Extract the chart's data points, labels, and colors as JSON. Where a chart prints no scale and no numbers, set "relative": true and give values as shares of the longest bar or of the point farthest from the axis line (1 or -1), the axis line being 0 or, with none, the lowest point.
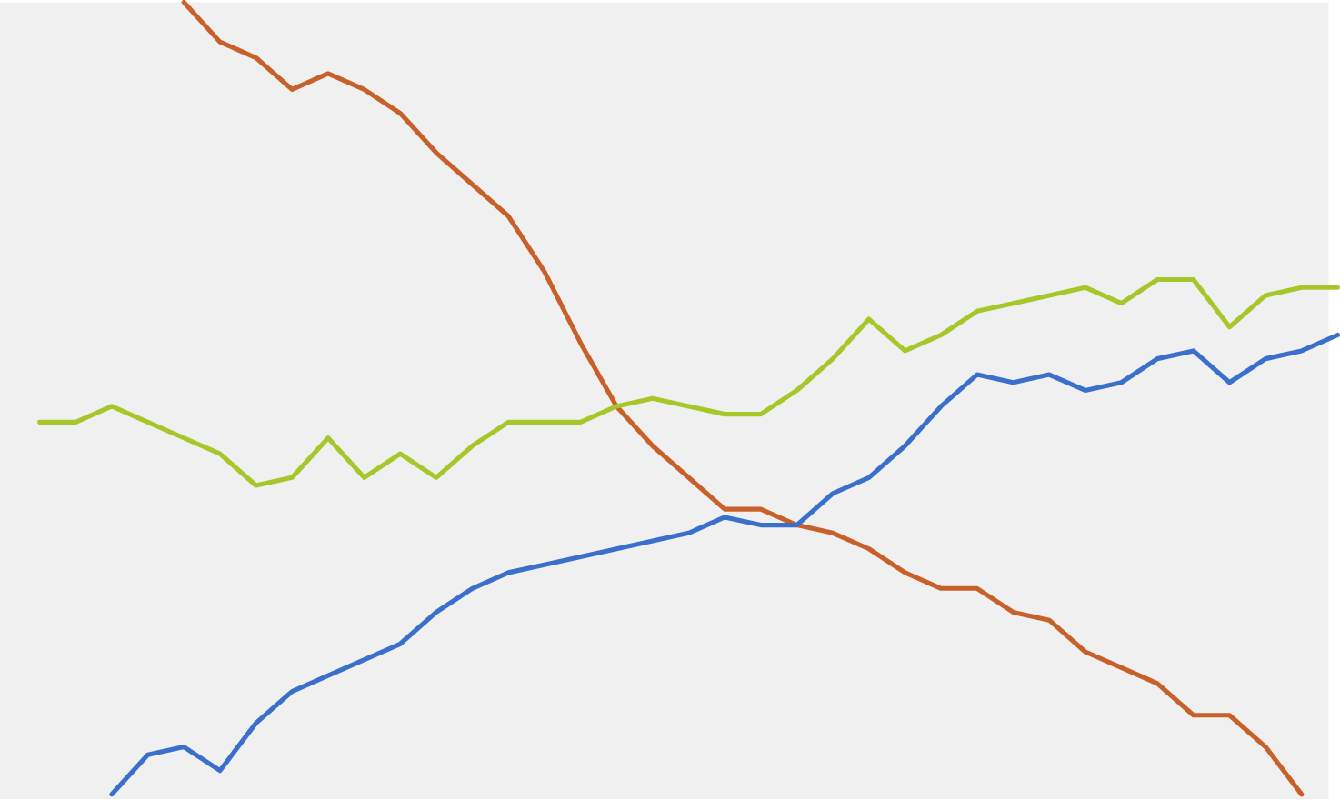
{
  "chart_data": {
    "type": "line",
    "relative": true,
    "categories": [
      null,
      null,
      null,
      null,
      null,
      null,
      null,
      null,
      null,
      null,
      null,
      null,
      null,
      null,
      null,
      null,
      null,
      null,
      null,
      null,
      null,
      null,
      null,
      null,
      null,
      null,
      null,
      null,
      null,
      null,
      null,
      null,
      null,
      null,
      null,
      null,
      null
    ],
    "series": [
      {
        "color": "#c8602a",
        "values": [
          null,
          null,
          null,
          null,
          1.0,
          0.95,
          0.93,
          0.89,
          0.91,
          0.89,
          0.86,
          0.81,
          0.77,
          0.73,
          0.66,
          0.57,
          0.49,
          0.44,
          0.4,
          0.36,
          0.36,
          0.34,
          0.33,
          0.31,
          0.28,
          0.26,
          0.26,
          0.23,
          0.22,
          0.18,
          0.16,
          0.14,
          0.1,
          0.1,
          0.06,
          0.0,
          null
        ]
      },
      {
        "color": "#a6c62a",
        "values": [
          0.47,
          0.47,
          0.49,
          0.47,
          0.45,
          0.43,
          0.39,
          0.4,
          0.45,
          0.4,
          0.43,
          0.4,
          0.44,
          0.47,
          0.47,
          0.47,
          0.49,
          0.5,
          0.49,
          0.48,
          0.48,
          0.51,
          0.55,
          0.6,
          0.56,
          0.58,
          0.61,
          0.62,
          0.63,
          0.64,
          0.62,
          0.65,
          0.65,
          0.59,
          0.63,
          0.64,
          0.64
        ]
      },
      {
        "color": "#3a6fcc",
        "values": [
          null,
          null,
          0.0,
          0.05,
          0.06,
          0.03,
          0.09,
          0.13,
          0.15,
          0.17,
          0.19,
          0.23,
          0.26,
          0.28,
          0.29,
          0.3,
          0.31,
          0.32,
          0.33,
          0.35,
          0.34,
          0.34,
          0.38,
          0.4,
          0.44,
          0.49,
          0.53,
          0.52,
          0.53,
          0.51,
          0.52,
          0.55,
          0.56,
          0.52,
          0.55,
          0.56,
          0.58
        ]
      }
    ],
    "marker": "none",
    "line_style": "solid"
  }
}
